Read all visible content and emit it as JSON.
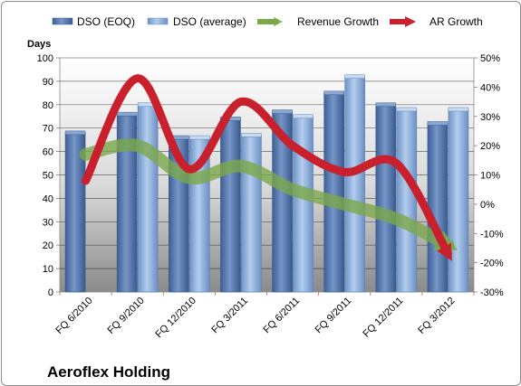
{
  "chart_data": {
    "type": "bar",
    "title": "Aeroflex Holding",
    "y_units_label": "Days",
    "categories": [
      "FQ 6/2010",
      "FQ 9/2010",
      "FQ 12/2010",
      "FQ 3/2011",
      "FQ 6/2011",
      "FQ 9/2011",
      "FQ 12/2011",
      "FQ 3/2012"
    ],
    "bar_series": [
      {
        "name": "DSO (EOQ)",
        "color": "#5b7bb0",
        "values": [
          68,
          76,
          66,
          74,
          77,
          85,
          80,
          72
        ]
      },
      {
        "name": "DSO (average)",
        "color": "#8db0dc",
        "values": [
          null,
          80,
          66,
          67,
          75,
          92,
          78,
          78
        ]
      }
    ],
    "line_series": [
      {
        "name": "Revenue Growth",
        "color": "#7aa84a",
        "values": [
          17,
          20,
          9,
          13,
          5,
          0,
          -5,
          -14
        ]
      },
      {
        "name": "AR Growth",
        "color": "#c8202c",
        "values": [
          8,
          43,
          12,
          35,
          20,
          11,
          14,
          -17
        ]
      }
    ],
    "y_left": {
      "min": 0,
      "max": 100,
      "step": 10,
      "ticks": [
        "0",
        "10",
        "20",
        "30",
        "40",
        "50",
        "60",
        "70",
        "80",
        "90",
        "100"
      ]
    },
    "y_right": {
      "min": -30,
      "max": 50,
      "step": 10,
      "ticks": [
        "-30%",
        "-20%",
        "-10%",
        "0%",
        "10%",
        "20%",
        "30%",
        "40%",
        "50%"
      ]
    },
    "grid": true,
    "legend_position": "top"
  }
}
